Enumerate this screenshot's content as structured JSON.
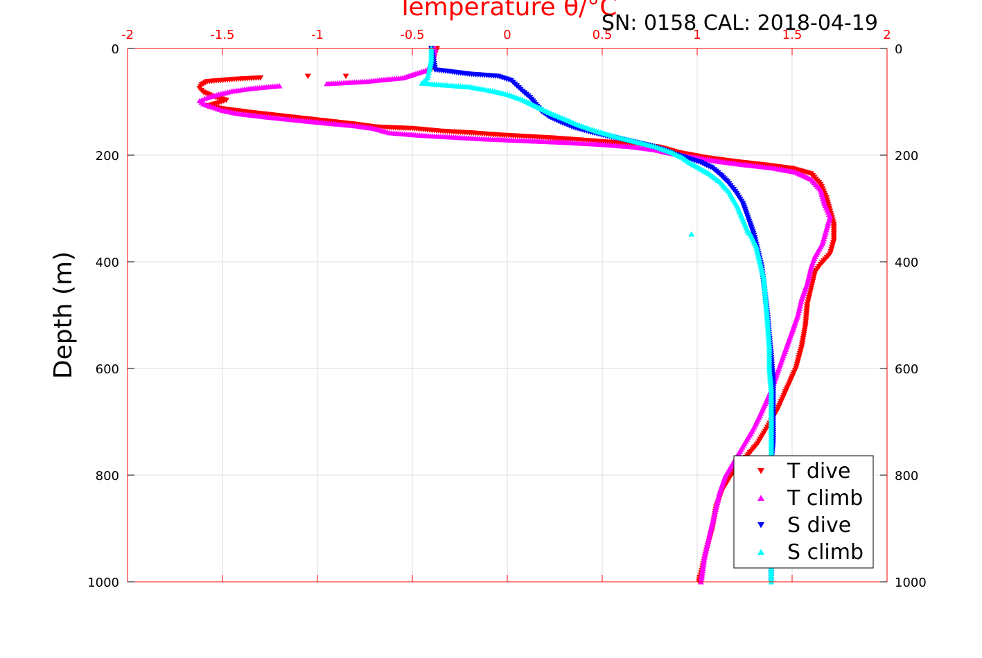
{
  "colors": {
    "t_axis": "#ff0000",
    "t_dive": "#ff0000",
    "t_climb": "#ff00ff",
    "s_dive": "#0000ff",
    "s_climb": "#00ffff",
    "grid": "#dddddd",
    "text": "#000000"
  },
  "chart_data": {
    "type": "scatter",
    "title": "SN: 0158  CAL: 2018-04-19",
    "xlabel": "Temperature θ/°C",
    "ylabel": "Depth (m)",
    "xlim": [
      -2,
      2
    ],
    "ylim": [
      0,
      1000
    ],
    "y_reversed": true,
    "x_axis_position": "top",
    "x_ticks": [
      -2,
      -1.5,
      -1,
      -0.5,
      0,
      0.5,
      1,
      1.5,
      2
    ],
    "x_tick_labels": [
      "-2",
      "-1.5",
      "-1",
      "-0.5",
      "0",
      "0.5",
      "1",
      "1.5",
      "2"
    ],
    "y_ticks": [
      0,
      200,
      400,
      600,
      800,
      1000
    ],
    "y_tick_labels": [
      "0",
      "200",
      "400",
      "600",
      "800",
      "1000"
    ],
    "grid": true,
    "legend_position": "bottom-right",
    "series": [
      {
        "name": "T dive",
        "marker": "triangle-down",
        "points": [
          [
            -0.37,
            0
          ],
          [
            -0.38,
            10
          ],
          [
            -0.39,
            25
          ],
          [
            -0.4,
            40
          ],
          [
            -0.85,
            52
          ],
          [
            -1.05,
            52
          ],
          [
            -1.3,
            55
          ],
          [
            -1.45,
            58
          ],
          [
            -1.58,
            62
          ],
          [
            -1.61,
            68
          ],
          [
            -1.62,
            75
          ],
          [
            -1.6,
            82
          ],
          [
            -1.55,
            90
          ],
          [
            -1.48,
            97
          ],
          [
            -1.52,
            102
          ],
          [
            -1.58,
            108
          ],
          [
            -1.5,
            113
          ],
          [
            -1.35,
            120
          ],
          [
            -1.2,
            126
          ],
          [
            -1.05,
            132
          ],
          [
            -0.9,
            138
          ],
          [
            -0.8,
            142
          ],
          [
            -0.7,
            147
          ],
          [
            -0.5,
            150
          ],
          [
            -0.35,
            155
          ],
          [
            -0.2,
            158
          ],
          [
            -0.05,
            162
          ],
          [
            0.1,
            165
          ],
          [
            0.25,
            168
          ],
          [
            0.4,
            172
          ],
          [
            0.55,
            176
          ],
          [
            0.7,
            180
          ],
          [
            0.8,
            185
          ],
          [
            0.9,
            195
          ],
          [
            1.05,
            205
          ],
          [
            1.2,
            212
          ],
          [
            1.35,
            218
          ],
          [
            1.5,
            225
          ],
          [
            1.6,
            235
          ],
          [
            1.65,
            255
          ],
          [
            1.68,
            280
          ],
          [
            1.7,
            305
          ],
          [
            1.72,
            330
          ],
          [
            1.72,
            360
          ],
          [
            1.7,
            385
          ],
          [
            1.65,
            405
          ],
          [
            1.62,
            420
          ],
          [
            1.6,
            450
          ],
          [
            1.58,
            480
          ],
          [
            1.57,
            520
          ],
          [
            1.55,
            560
          ],
          [
            1.52,
            600
          ],
          [
            1.47,
            640
          ],
          [
            1.42,
            680
          ],
          [
            1.37,
            710
          ],
          [
            1.32,
            740
          ],
          [
            1.25,
            770
          ],
          [
            1.18,
            800
          ],
          [
            1.13,
            830
          ],
          [
            1.1,
            860
          ],
          [
            1.08,
            900
          ],
          [
            1.05,
            940
          ],
          [
            1.03,
            970
          ],
          [
            1.01,
            1000
          ]
        ]
      },
      {
        "name": "T climb",
        "marker": "triangle-up",
        "points": [
          [
            -0.38,
            0
          ],
          [
            -0.39,
            20
          ],
          [
            -0.42,
            40
          ],
          [
            -0.55,
            55
          ],
          [
            -0.75,
            62
          ],
          [
            -0.95,
            66
          ],
          [
            -1.2,
            70
          ],
          [
            -1.35,
            75
          ],
          [
            -1.45,
            80
          ],
          [
            -1.52,
            86
          ],
          [
            -1.58,
            92
          ],
          [
            -1.62,
            98
          ],
          [
            -1.6,
            104
          ],
          [
            -1.55,
            110
          ],
          [
            -1.5,
            116
          ],
          [
            -1.42,
            122
          ],
          [
            -1.28,
            128
          ],
          [
            -1.12,
            134
          ],
          [
            -0.95,
            140
          ],
          [
            -0.8,
            145
          ],
          [
            -0.7,
            150
          ],
          [
            -0.62,
            158
          ],
          [
            -0.45,
            163
          ],
          [
            -0.25,
            167
          ],
          [
            -0.1,
            170
          ],
          [
            0.1,
            173
          ],
          [
            0.3,
            176
          ],
          [
            0.5,
            180
          ],
          [
            0.65,
            184
          ],
          [
            0.78,
            190
          ],
          [
            0.88,
            198
          ],
          [
            1.0,
            205
          ],
          [
            1.12,
            212
          ],
          [
            1.25,
            218
          ],
          [
            1.4,
            224
          ],
          [
            1.52,
            232
          ],
          [
            1.6,
            245
          ],
          [
            1.65,
            265
          ],
          [
            1.67,
            290
          ],
          [
            1.7,
            315
          ],
          [
            1.68,
            340
          ],
          [
            1.66,
            365
          ],
          [
            1.62,
            390
          ],
          [
            1.6,
            410
          ],
          [
            1.58,
            440
          ],
          [
            1.55,
            470
          ],
          [
            1.53,
            500
          ],
          [
            1.5,
            530
          ],
          [
            1.47,
            560
          ],
          [
            1.43,
            600
          ],
          [
            1.39,
            640
          ],
          [
            1.34,
            680
          ],
          [
            1.3,
            710
          ],
          [
            1.25,
            740
          ],
          [
            1.2,
            770
          ],
          [
            1.15,
            800
          ],
          [
            1.12,
            830
          ],
          [
            1.1,
            860
          ],
          [
            1.08,
            890
          ],
          [
            1.06,
            920
          ],
          [
            1.04,
            950
          ],
          [
            1.03,
            975
          ],
          [
            1.02,
            1000
          ]
        ]
      },
      {
        "name": "S dive",
        "marker": "triangle-down",
        "points": [
          [
            -0.4,
            0
          ],
          [
            -0.39,
            20
          ],
          [
            -0.38,
            40
          ],
          [
            -0.2,
            48
          ],
          [
            -0.05,
            52
          ],
          [
            0.02,
            60
          ],
          [
            0.05,
            70
          ],
          [
            0.08,
            80
          ],
          [
            0.12,
            92
          ],
          [
            0.15,
            105
          ],
          [
            0.18,
            118
          ],
          [
            0.22,
            128
          ],
          [
            0.28,
            138
          ],
          [
            0.35,
            148
          ],
          [
            0.45,
            158
          ],
          [
            0.55,
            166
          ],
          [
            0.65,
            174
          ],
          [
            0.75,
            182
          ],
          [
            0.82,
            190
          ],
          [
            0.88,
            198
          ],
          [
            0.95,
            206
          ],
          [
            1.02,
            214
          ],
          [
            1.08,
            224
          ],
          [
            1.12,
            236
          ],
          [
            1.16,
            250
          ],
          [
            1.2,
            268
          ],
          [
            1.24,
            290
          ],
          [
            1.27,
            320
          ],
          [
            1.3,
            350
          ],
          [
            1.32,
            380
          ],
          [
            1.34,
            410
          ],
          [
            1.35,
            440
          ],
          [
            1.36,
            470
          ],
          [
            1.37,
            500
          ],
          [
            1.38,
            540
          ],
          [
            1.39,
            580
          ],
          [
            1.4,
            620
          ],
          [
            1.4,
            660
          ],
          [
            1.4,
            700
          ],
          [
            1.4,
            740
          ],
          [
            1.39,
            780
          ],
          [
            1.39,
            820
          ],
          [
            1.39,
            860
          ],
          [
            1.39,
            900
          ],
          [
            1.39,
            940
          ],
          [
            1.39,
            970
          ],
          [
            1.39,
            1000
          ]
        ]
      },
      {
        "name": "S climb",
        "marker": "triangle-up",
        "points": [
          [
            -0.4,
            0
          ],
          [
            -0.4,
            20
          ],
          [
            -0.41,
            40
          ],
          [
            -0.42,
            55
          ],
          [
            -0.45,
            65
          ],
          [
            -0.35,
            68
          ],
          [
            -0.2,
            72
          ],
          [
            -0.1,
            78
          ],
          [
            0.0,
            86
          ],
          [
            0.08,
            96
          ],
          [
            0.15,
            108
          ],
          [
            0.22,
            120
          ],
          [
            0.3,
            132
          ],
          [
            0.38,
            144
          ],
          [
            0.48,
            156
          ],
          [
            0.58,
            166
          ],
          [
            0.68,
            175
          ],
          [
            0.78,
            184
          ],
          [
            0.86,
            194
          ],
          [
            0.92,
            204
          ],
          [
            0.96,
            214
          ],
          [
            1.0,
            222
          ],
          [
            1.06,
            234
          ],
          [
            1.12,
            250
          ],
          [
            1.17,
            270
          ],
          [
            1.21,
            295
          ],
          [
            1.24,
            320
          ],
          [
            1.27,
            345
          ],
          [
            0.97,
            348
          ],
          [
            1.28,
            348
          ],
          [
            1.31,
            370
          ],
          [
            1.33,
            400
          ],
          [
            1.35,
            430
          ],
          [
            1.36,
            470
          ],
          [
            1.37,
            510
          ],
          [
            1.38,
            560
          ],
          [
            1.38,
            600
          ],
          [
            1.39,
            640
          ],
          [
            1.39,
            680
          ],
          [
            1.39,
            720
          ],
          [
            1.39,
            760
          ],
          [
            1.39,
            800
          ],
          [
            1.39,
            840
          ],
          [
            1.39,
            880
          ],
          [
            1.39,
            920
          ],
          [
            1.39,
            960
          ],
          [
            1.39,
            1000
          ]
        ]
      }
    ]
  }
}
